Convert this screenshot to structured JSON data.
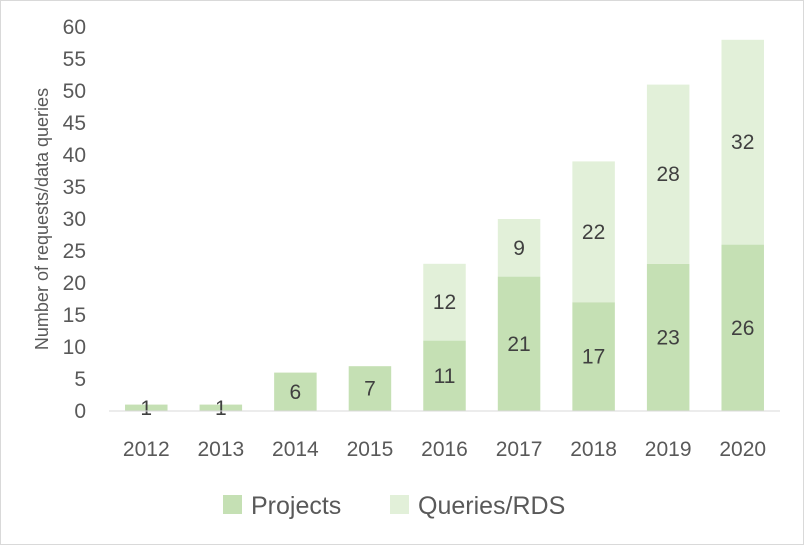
{
  "chart_data": {
    "type": "bar",
    "stacked": true,
    "categories": [
      "2012",
      "2013",
      "2014",
      "2015",
      "2016",
      "2017",
      "2018",
      "2019",
      "2020"
    ],
    "series": [
      {
        "name": "Projects",
        "values": [
          1,
          1,
          6,
          7,
          11,
          21,
          17,
          23,
          26
        ],
        "color": "#c5e0b4"
      },
      {
        "name": "Queries/RDS",
        "values": [
          0,
          0,
          0,
          0,
          12,
          9,
          22,
          28,
          32
        ],
        "color": "#e2f0d9"
      }
    ],
    "title": "",
    "xlabel": "",
    "ylabel": "Number of requests/data queries",
    "ylim": [
      0,
      60
    ],
    "yticks": [
      0,
      5,
      10,
      15,
      20,
      25,
      30,
      35,
      40,
      45,
      50,
      55,
      60
    ],
    "grid": false,
    "legend_position": "bottom"
  }
}
